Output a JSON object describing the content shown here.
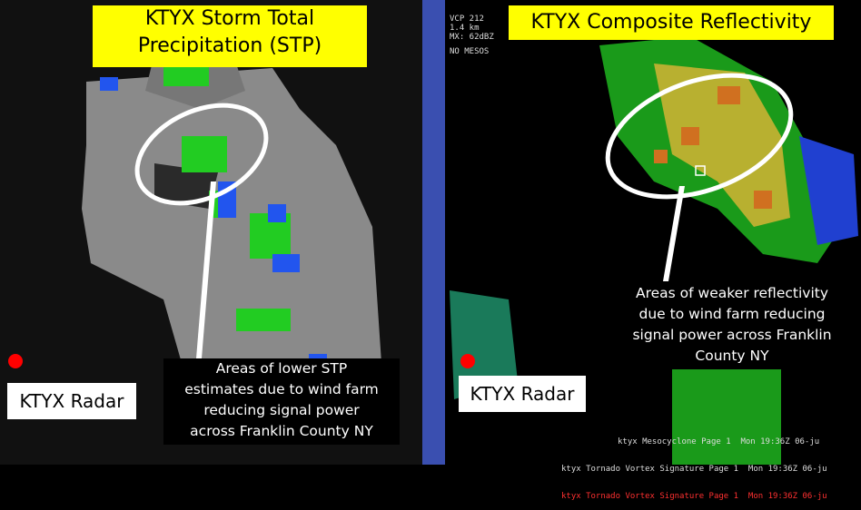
{
  "left_panel": {
    "title_lines": [
      "KTYX Storm Total",
      "Precipitation (STP)"
    ],
    "annotation_lines": [
      "Areas of lower STP",
      "estimates due to wind farm",
      "reducing signal power",
      "across Franklin County NY"
    ],
    "radar_label": "KTYX Radar"
  },
  "right_panel": {
    "title": "KTYX Composite Reflectivity",
    "info_lines": [
      "VCP 212",
      "1.4 km",
      "MX: 62dBZ"
    ],
    "mesos": "NO MESOS",
    "annotation_lines": [
      "Areas of weaker reflectivity",
      "due to wind farm reducing",
      "signal power across Franklin",
      "County NY"
    ],
    "radar_label": "KTYX Radar",
    "status_lines": [
      "ktyx Mesocyclone Page 1  Mon 19:36Z 06-ju",
      "ktyx Tornado Vortex Signature Page 1  Mon 19:36Z 06-ju",
      "ktyx Tornado Vortex Signature Page 1  Mon 19:36Z 06-ju"
    ]
  }
}
